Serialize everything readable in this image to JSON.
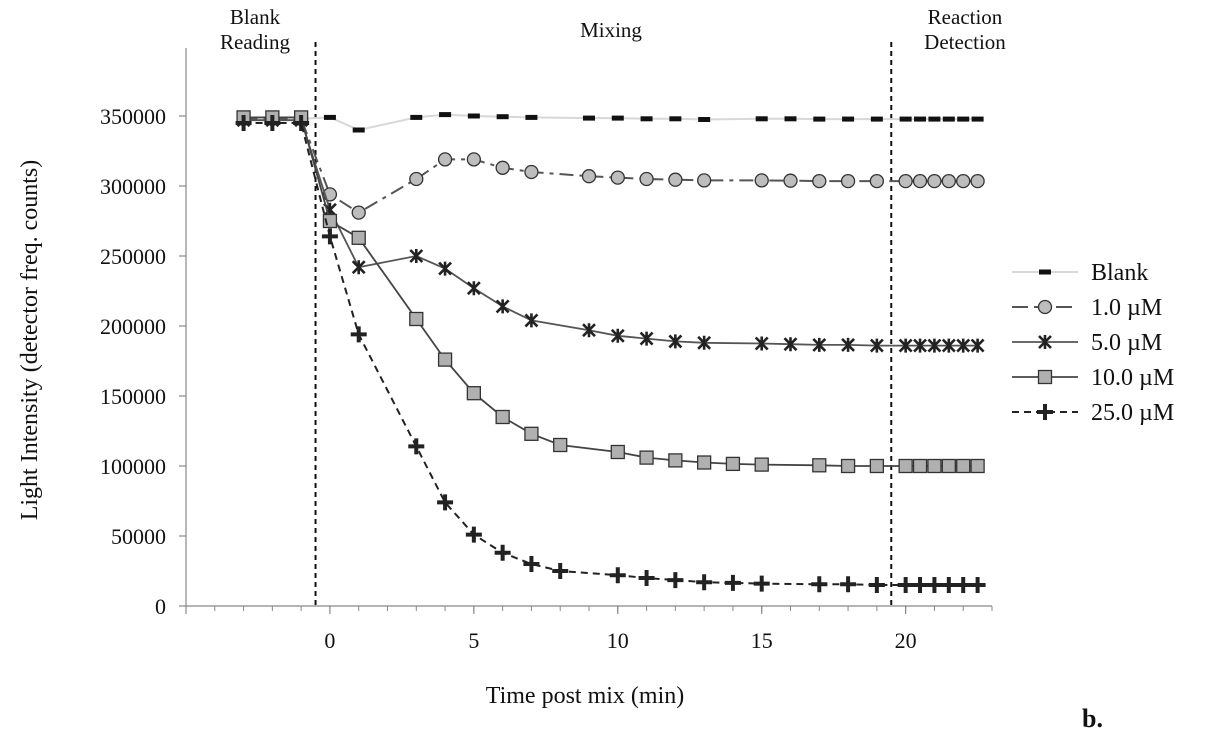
{
  "chart_data": {
    "type": "line",
    "xlabel": "Time post mix (min)",
    "ylabel": "Light Intensity (detector freq. counts)",
    "xlim": [
      -5,
      23
    ],
    "ylim": [
      0,
      350000
    ],
    "x_ticks": [
      0,
      5,
      10,
      15,
      20
    ],
    "y_ticks": [
      0,
      50000,
      100000,
      150000,
      200000,
      250000,
      300000,
      350000
    ],
    "grid": false,
    "legend_position": "right",
    "phases": [
      {
        "label": "Blank Reading",
        "boundary_x": -0.5
      },
      {
        "label": "Mixing",
        "boundary_x": 19.5
      },
      {
        "label": "Reaction Detection"
      }
    ],
    "panel_label": "b.",
    "series": [
      {
        "name": "Blank",
        "color": "#d8d8d8",
        "marker": "dash",
        "x": [
          -3,
          -2,
          -1,
          0,
          1,
          3,
          4,
          5,
          6,
          7,
          9,
          10,
          11,
          12,
          13,
          15,
          16,
          17,
          18,
          19,
          20,
          20.5,
          21,
          21.5,
          22,
          22.5
        ],
        "y": [
          348000,
          348000,
          348000,
          349000,
          340000,
          349000,
          351000,
          350000,
          349500,
          349000,
          348500,
          348500,
          348000,
          348000,
          347500,
          348000,
          348000,
          347800,
          347800,
          347800,
          347800,
          347800,
          347800,
          347800,
          347800,
          347800
        ]
      },
      {
        "name": "1.0 µM",
        "color": "#555555",
        "marker": "circle",
        "x": [
          -3,
          -2,
          -1,
          0,
          1,
          3,
          4,
          5,
          6,
          7,
          9,
          10,
          11,
          12,
          13,
          15,
          16,
          17,
          18,
          19,
          20,
          20.5,
          21,
          21.5,
          22,
          22.5
        ],
        "y": [
          348000,
          348000,
          348000,
          294000,
          281000,
          305000,
          319000,
          319000,
          313000,
          310000,
          307000,
          306000,
          305000,
          304500,
          304000,
          304000,
          303800,
          303500,
          303500,
          303500,
          303500,
          303500,
          303500,
          303500,
          303500,
          303500
        ]
      },
      {
        "name": "5.0 µM",
        "color": "#444444",
        "marker": "star",
        "x": [
          -3,
          -2,
          -1,
          0,
          1,
          3,
          4,
          5,
          6,
          7,
          9,
          10,
          11,
          12,
          13,
          15,
          16,
          17,
          18,
          19,
          20,
          20.5,
          21,
          21.5,
          22,
          22.5
        ],
        "y": [
          347000,
          347000,
          347000,
          283000,
          242000,
          250000,
          241000,
          227000,
          214000,
          204000,
          197000,
          193000,
          191000,
          189000,
          188000,
          187500,
          187000,
          186500,
          186500,
          186000,
          186000,
          186000,
          186000,
          186000,
          186000,
          186000
        ]
      },
      {
        "name": "10.0 µM",
        "color": "#444444",
        "marker": "square",
        "x": [
          -3,
          -2,
          -1,
          0,
          1,
          3,
          4,
          5,
          6,
          7,
          8,
          10,
          11,
          12,
          13,
          14,
          15,
          17,
          18,
          19,
          20,
          20.5,
          21,
          21.5,
          22,
          22.5
        ],
        "y": [
          349000,
          349000,
          349000,
          275000,
          263000,
          205000,
          176000,
          152000,
          135000,
          123000,
          115000,
          110000,
          106000,
          104000,
          102500,
          101500,
          101000,
          100500,
          100000,
          100000,
          100000,
          100000,
          100000,
          100000,
          100000,
          100000
        ]
      },
      {
        "name": "25.0 µM",
        "color": "#222222",
        "marker": "plus",
        "x": [
          -3,
          -2,
          -1,
          0,
          1,
          3,
          4,
          5,
          6,
          7,
          8,
          10,
          11,
          12,
          13,
          14,
          15,
          17,
          18,
          19,
          20,
          20.5,
          21,
          21.5,
          22,
          22.5
        ],
        "y": [
          345000,
          345000,
          345000,
          264000,
          194000,
          114000,
          74000,
          51000,
          38000,
          30000,
          25000,
          22000,
          20000,
          18500,
          17000,
          16500,
          16000,
          15500,
          15500,
          15000,
          15000,
          15000,
          15000,
          15000,
          15000,
          15000
        ]
      }
    ]
  }
}
